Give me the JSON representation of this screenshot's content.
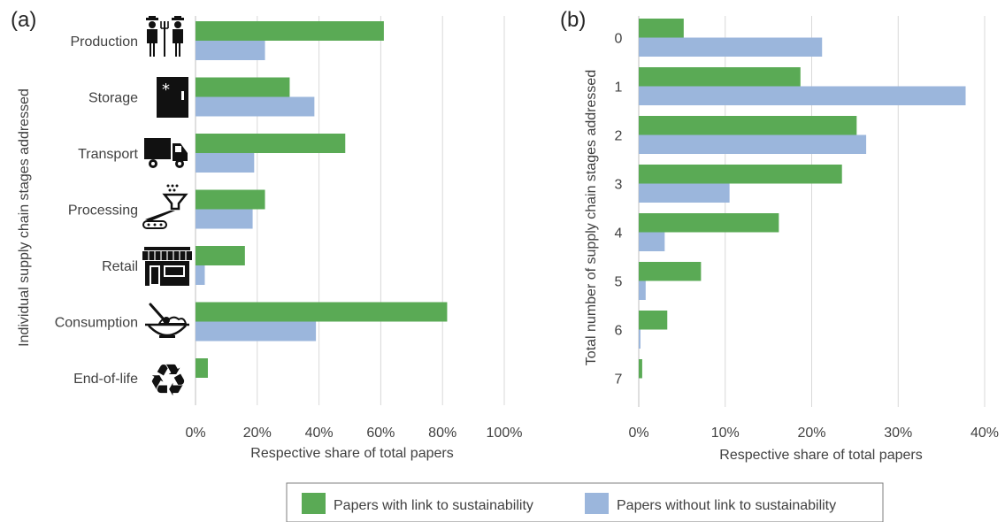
{
  "chart_data": [
    {
      "panel_label": "(a)",
      "type": "bar",
      "orientation": "horizontal",
      "categories": [
        "Production",
        "Storage",
        "Transport",
        "Processing",
        "Retail",
        "Consumption",
        "End-of-life"
      ],
      "category_icons": [
        "farmers-icon",
        "freezer-icon",
        "truck-icon",
        "processing-machine-icon",
        "shop-icon",
        "bowl-icon",
        "recycle-icon"
      ],
      "series": [
        {
          "name": "Papers with link to sustainability",
          "color": "#5aaa55",
          "values": [
            61,
            30.5,
            48.5,
            22.5,
            16,
            81.5,
            4
          ]
        },
        {
          "name": "Papers without link to sustainability",
          "color": "#9bb6dc",
          "values": [
            22.5,
            38.5,
            19,
            18.5,
            3,
            39,
            0
          ]
        }
      ],
      "xlabel": "Respective share of total papers",
      "ylabel": "Individual supply chain stages addressed",
      "xlim": [
        0,
        100
      ],
      "xticks": [
        0,
        20,
        40,
        60,
        80,
        100
      ],
      "xtick_labels": [
        "0%",
        "20%",
        "40%",
        "60%",
        "80%",
        "100%"
      ],
      "grid": "vertical"
    },
    {
      "panel_label": "(b)",
      "type": "bar",
      "orientation": "horizontal",
      "categories": [
        "0",
        "1",
        "2",
        "3",
        "4",
        "5",
        "6",
        "7"
      ],
      "series": [
        {
          "name": "Papers with link to sustainability",
          "color": "#5aaa55",
          "values": [
            5.2,
            18.7,
            25.2,
            23.5,
            16.2,
            7.2,
            3.3,
            0.4
          ]
        },
        {
          "name": "Papers without link to sustainability",
          "color": "#9bb6dc",
          "values": [
            21.2,
            37.8,
            26.3,
            10.5,
            3.0,
            0.8,
            0.2,
            0
          ]
        }
      ],
      "xlabel": "Respective share of total papers",
      "ylabel": "Total number of supply chain stages addressed",
      "xlim": [
        0,
        40
      ],
      "xticks": [
        0,
        10,
        20,
        30,
        40
      ],
      "xtick_labels": [
        "0%",
        "10%",
        "20%",
        "30%",
        "40%"
      ],
      "grid": "vertical"
    }
  ],
  "legend": {
    "placement": "bottom",
    "items": [
      {
        "label": "Papers with link to sustainability",
        "color": "#5aaa55"
      },
      {
        "label": "Papers without link to sustainability",
        "color": "#9bb6dc"
      }
    ]
  }
}
